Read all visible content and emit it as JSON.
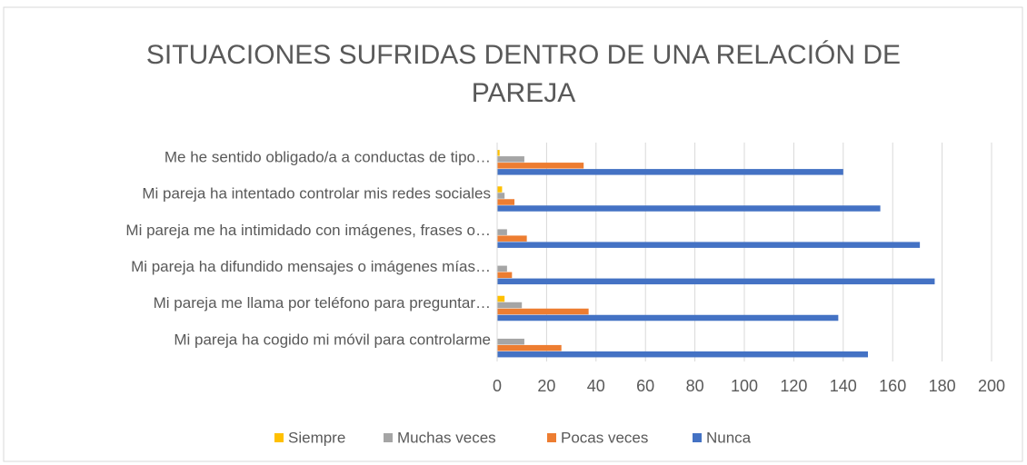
{
  "chart_data": {
    "type": "bar",
    "orientation": "horizontal",
    "title": [
      "SITUACIONES SUFRIDAS DENTRO DE UNA RELACIÓN DE",
      "PAREJA"
    ],
    "categories": [
      "Me he sentido obligado/a a conductas de tipo…",
      "Mi pareja ha intentado controlar mis redes sociales",
      "Mi pareja me ha intimidado con imágenes, frases o…",
      "Mi pareja ha difundido mensajes o imágenes mías…",
      "Mi pareja me llama por teléfono para preguntar…",
      "Mi pareja ha cogido mi móvil para controlarme"
    ],
    "series": [
      {
        "name": "Siempre",
        "color": "#ffc000",
        "values": [
          1,
          2,
          0,
          0,
          3,
          0
        ]
      },
      {
        "name": "Muchas veces",
        "color": "#a5a5a5",
        "values": [
          11,
          3,
          4,
          4,
          10,
          11
        ]
      },
      {
        "name": "Pocas veces",
        "color": "#ed7d31",
        "values": [
          35,
          7,
          12,
          6,
          37,
          26
        ]
      },
      {
        "name": "Nunca",
        "color": "#4472c4",
        "values": [
          140,
          155,
          171,
          177,
          138,
          150
        ]
      }
    ],
    "xlim": [
      0,
      200
    ],
    "xticks": [
      0,
      20,
      40,
      60,
      80,
      100,
      120,
      140,
      160,
      180,
      200
    ],
    "grid": true,
    "legend": "bottom"
  }
}
